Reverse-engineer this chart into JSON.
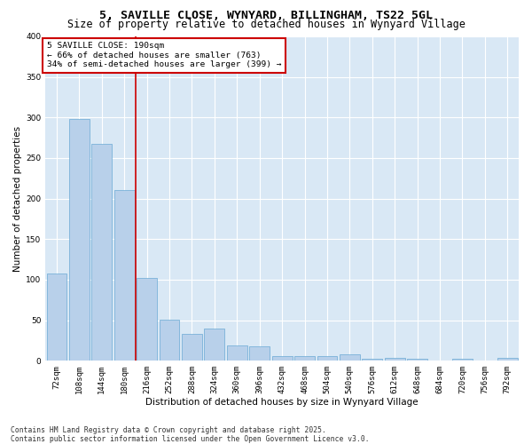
{
  "title_line1": "5, SAVILLE CLOSE, WYNYARD, BILLINGHAM, TS22 5GL",
  "title_line2": "Size of property relative to detached houses in Wynyard Village",
  "xlabel": "Distribution of detached houses by size in Wynyard Village",
  "ylabel": "Number of detached properties",
  "footer": "Contains HM Land Registry data © Crown copyright and database right 2025.\nContains public sector information licensed under the Open Government Licence v3.0.",
  "annotation_title": "5 SAVILLE CLOSE: 190sqm",
  "annotation_line1": "← 66% of detached houses are smaller (763)",
  "annotation_line2": "34% of semi-detached houses are larger (399) →",
  "bar_labels": [
    "72sqm",
    "108sqm",
    "144sqm",
    "180sqm",
    "216sqm",
    "252sqm",
    "288sqm",
    "324sqm",
    "360sqm",
    "396sqm",
    "432sqm",
    "468sqm",
    "504sqm",
    "540sqm",
    "576sqm",
    "612sqm",
    "648sqm",
    "684sqm",
    "720sqm",
    "756sqm",
    "792sqm"
  ],
  "bar_values": [
    108,
    298,
    268,
    210,
    102,
    51,
    33,
    40,
    19,
    18,
    6,
    6,
    6,
    8,
    2,
    4,
    2,
    0,
    2,
    0,
    3
  ],
  "bar_color": "#b8d0ea",
  "bar_edge_color": "#6aaad4",
  "vline_x": 3.5,
  "vline_color": "#cc0000",
  "fig_bg_color": "#ffffff",
  "plot_bg_color": "#d9e8f5",
  "ylim": [
    0,
    400
  ],
  "yticks": [
    0,
    50,
    100,
    150,
    200,
    250,
    300,
    350,
    400
  ],
  "title_fontsize": 9.5,
  "subtitle_fontsize": 8.5,
  "axis_label_fontsize": 7.5,
  "tick_fontsize": 6.5,
  "annotation_fontsize": 6.8,
  "annotation_box_color": "#cc0000",
  "grid_color": "#ffffff",
  "footer_fontsize": 5.8
}
